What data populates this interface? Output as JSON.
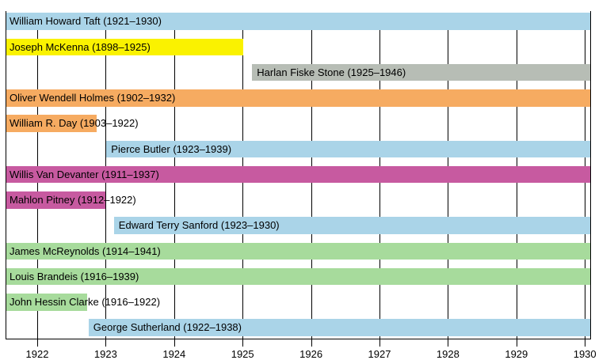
{
  "chart_data": {
    "type": "gantt",
    "description": "Timeline of U.S. Supreme Court justices' tenures",
    "x_ticks": [
      "1922",
      "1923",
      "1924",
      "1925",
      "1926",
      "1927",
      "1928",
      "1929",
      "1930"
    ],
    "x_range": [
      1921.55,
      1930.1
    ],
    "grid": true,
    "colors": {
      "blue": "#AAD4E8",
      "yellow": "#FAF200",
      "gray": "#B7BDB5",
      "orange": "#F6AB61",
      "magenta": "#C75AA0",
      "green": "#A7DB9C"
    },
    "bars": [
      {
        "name": "William Howard Taft",
        "label": "William Howard Taft (1921–1930)",
        "term_start": 1921,
        "term_end": 1930,
        "bar_start": 1921.55,
        "bar_end": 1930.08,
        "color": "#AAD4E8"
      },
      {
        "name": "Joseph McKenna",
        "label": "Joseph McKenna (1898–1925)",
        "term_start": 1898,
        "term_end": 1925,
        "bar_start": 1921.55,
        "bar_end": 1925.01,
        "color": "#FAF200"
      },
      {
        "name": "Harlan Fiske Stone",
        "label": "Harlan Fiske Stone (1925–1946)",
        "term_start": 1925,
        "term_end": 1946,
        "bar_start": 1925.14,
        "bar_end": 1930.08,
        "color": "#B7BDB5"
      },
      {
        "name": "Oliver Wendell Holmes",
        "label": "Oliver Wendell Holmes (1902–1932)",
        "term_start": 1902,
        "term_end": 1932,
        "bar_start": 1921.55,
        "bar_end": 1930.08,
        "color": "#F6AB61"
      },
      {
        "name": "William R. Day",
        "label": "William R. Day (1903–1922)",
        "term_start": 1903,
        "term_end": 1922,
        "bar_start": 1921.55,
        "bar_end": 1922.87,
        "color": "#F6AB61"
      },
      {
        "name": "Pierce Butler",
        "label": "Pierce Butler (1923–1939)",
        "term_start": 1923,
        "term_end": 1939,
        "bar_start": 1923.01,
        "bar_end": 1930.08,
        "color": "#AAD4E8"
      },
      {
        "name": "Willis Van Devanter",
        "label": "Willis Van Devanter (1911–1937)",
        "term_start": 1911,
        "term_end": 1937,
        "bar_start": 1921.55,
        "bar_end": 1930.08,
        "color": "#C75AA0"
      },
      {
        "name": "Mahlon Pitney",
        "label": "Mahlon Pitney (1912–1922)",
        "term_start": 1912,
        "term_end": 1922,
        "bar_start": 1921.55,
        "bar_end": 1923.0,
        "color": "#C75AA0"
      },
      {
        "name": "Edward Terry Sanford",
        "label": "Edward Terry Sanford (1923–1930)",
        "term_start": 1923,
        "term_end": 1930,
        "bar_start": 1923.12,
        "bar_end": 1930.08,
        "color": "#AAD4E8"
      },
      {
        "name": "James McReynolds",
        "label": "James McReynolds (1914–1941)",
        "term_start": 1914,
        "term_end": 1941,
        "bar_start": 1921.55,
        "bar_end": 1930.08,
        "color": "#A7DB9C"
      },
      {
        "name": "Louis Brandeis",
        "label": "Louis Brandeis (1916–1939)",
        "term_start": 1916,
        "term_end": 1939,
        "bar_start": 1921.55,
        "bar_end": 1930.08,
        "color": "#A7DB9C"
      },
      {
        "name": "John Hessin Clarke",
        "label": "John Hessin Clarke (1916–1922)",
        "term_start": 1916,
        "term_end": 1922,
        "bar_start": 1921.55,
        "bar_end": 1922.73,
        "color": "#A7DB9C"
      },
      {
        "name": "George Sutherland",
        "label": "George Sutherland (1922–1938)",
        "term_start": 1922,
        "term_end": 1938,
        "bar_start": 1922.75,
        "bar_end": 1930.08,
        "color": "#AAD4E8"
      }
    ]
  }
}
